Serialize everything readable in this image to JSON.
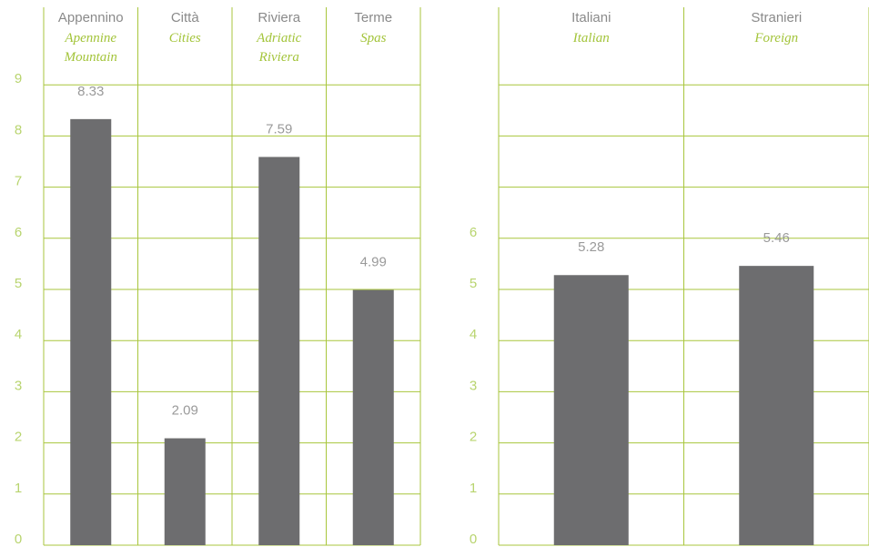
{
  "chart_data": [
    {
      "type": "bar",
      "categories": [
        "Appennino",
        "Città",
        "Riviera",
        "Terme"
      ],
      "category_translations": [
        "Apennine Mountain",
        "Cities",
        "Adriatic Riviera",
        "Spas"
      ],
      "values": [
        8.33,
        2.09,
        7.59,
        4.99
      ],
      "color": "#6d6d6f",
      "ylim": [
        0,
        9
      ],
      "yticks": [
        0,
        1,
        2,
        3,
        4,
        5,
        6,
        7,
        8,
        9
      ],
      "grid": true
    },
    {
      "type": "bar",
      "categories": [
        "Italiani",
        "Stranieri"
      ],
      "category_translations": [
        "Italian",
        "Foreign"
      ],
      "values": [
        5.28,
        5.46
      ],
      "color": "#6d6d6f",
      "ylim": [
        0,
        9
      ],
      "yticks": [
        0,
        1,
        2,
        3,
        4,
        5,
        6
      ],
      "grid_lines": [
        0,
        1,
        2,
        3,
        4,
        5,
        6,
        7,
        8,
        9
      ],
      "grid": true
    }
  ]
}
